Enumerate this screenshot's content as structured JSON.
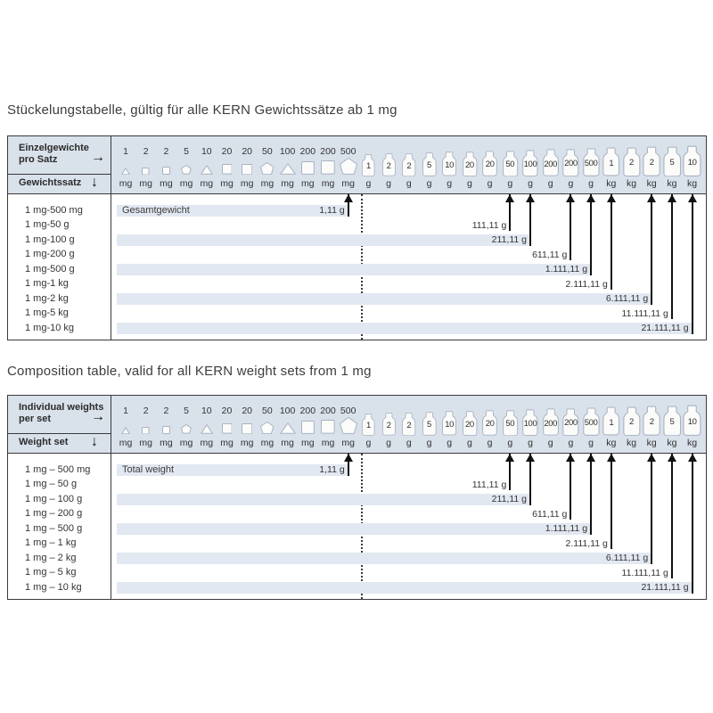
{
  "document": {
    "tables": [
      {
        "id": "de",
        "title": "Stückelungstabelle, gültig für alle KERN Gewichtssätze ab 1 mg",
        "header": {
          "col_axis_line1": "Einzelgewichte",
          "col_axis_line2": "pro Satz",
          "col_axis_arrow": "→",
          "row_axis_label": "Gewichtssatz",
          "row_axis_arrow": "↓"
        },
        "total_weight_label": "Gesamtgewicht",
        "rows": [
          {
            "set": "1 mg-500 mg",
            "total": "1,11 g",
            "arrow_col": 11
          },
          {
            "set": "1 mg-50 g",
            "total": "111,11 g",
            "arrow_col": 19
          },
          {
            "set": "1 mg-100 g",
            "total": "211,11 g",
            "arrow_col": 20
          },
          {
            "set": "1 mg-200 g",
            "total": "611,11 g",
            "arrow_col": 22
          },
          {
            "set": "1 mg-500 g",
            "total": "1.111,11 g",
            "arrow_col": 23
          },
          {
            "set": "1 mg-1 kg",
            "total": "2.111,11 g",
            "arrow_col": 24
          },
          {
            "set": "1 mg-2 kg",
            "total": "6.111,11 g",
            "arrow_col": 26
          },
          {
            "set": "1 mg-5 kg",
            "total": "11.111,11 g",
            "arrow_col": 27
          },
          {
            "set": "1 mg-10 kg",
            "total": "21.111,11 g",
            "arrow_col": 28
          }
        ]
      },
      {
        "id": "en",
        "title": "Composition table, valid for all KERN weight sets from 1 mg",
        "header": {
          "col_axis_line1": "Individual weights",
          "col_axis_line2": "per set",
          "col_axis_arrow": "→",
          "row_axis_label": "Weight set",
          "row_axis_arrow": "↓"
        },
        "total_weight_label": "Total weight",
        "rows": [
          {
            "set": "1 mg – 500 mg",
            "total": "1,11 g",
            "arrow_col": 11
          },
          {
            "set": "1 mg – 50 g",
            "total": "111,11 g",
            "arrow_col": 19
          },
          {
            "set": "1 mg – 100 g",
            "total": "211,11 g",
            "arrow_col": 20
          },
          {
            "set": "1 mg – 200 g",
            "total": "611,11 g",
            "arrow_col": 22
          },
          {
            "set": "1 mg – 500 g",
            "total": "1.111,11 g",
            "arrow_col": 23
          },
          {
            "set": "1 mg – 1 kg",
            "total": "2.111,11 g",
            "arrow_col": 24
          },
          {
            "set": "1 mg – 2 kg",
            "total": "6.111,11 g",
            "arrow_col": 26
          },
          {
            "set": "1 mg – 5 kg",
            "total": "11.111,11 g",
            "arrow_col": 27
          },
          {
            "set": "1 mg – 10 kg",
            "total": "21.111,11 g",
            "arrow_col": 28
          }
        ]
      }
    ],
    "columns": [
      {
        "value": "1",
        "unit": "mg",
        "shape": "triangle",
        "size": "xs"
      },
      {
        "value": "2",
        "unit": "mg",
        "shape": "square",
        "size": "xs"
      },
      {
        "value": "2",
        "unit": "mg",
        "shape": "square",
        "size": "xs"
      },
      {
        "value": "5",
        "unit": "mg",
        "shape": "pentagon",
        "size": "xs"
      },
      {
        "value": "10",
        "unit": "mg",
        "shape": "triangle",
        "size": "sm"
      },
      {
        "value": "20",
        "unit": "mg",
        "shape": "square",
        "size": "sm"
      },
      {
        "value": "20",
        "unit": "mg",
        "shape": "square",
        "size": "sm"
      },
      {
        "value": "50",
        "unit": "mg",
        "shape": "pentagon",
        "size": "sm"
      },
      {
        "value": "100",
        "unit": "mg",
        "shape": "triangle",
        "size": "md"
      },
      {
        "value": "200",
        "unit": "mg",
        "shape": "square",
        "size": "md"
      },
      {
        "value": "200",
        "unit": "mg",
        "shape": "square",
        "size": "md"
      },
      {
        "value": "500",
        "unit": "mg",
        "shape": "pentagon",
        "size": "md"
      },
      {
        "value": "1",
        "unit": "g",
        "shape": "bottle"
      },
      {
        "value": "2",
        "unit": "g",
        "shape": "bottle"
      },
      {
        "value": "2",
        "unit": "g",
        "shape": "bottle"
      },
      {
        "value": "5",
        "unit": "g",
        "shape": "bottle"
      },
      {
        "value": "10",
        "unit": "g",
        "shape": "bottle"
      },
      {
        "value": "20",
        "unit": "g",
        "shape": "bottle"
      },
      {
        "value": "20",
        "unit": "g",
        "shape": "bottle"
      },
      {
        "value": "50",
        "unit": "g",
        "shape": "bottle"
      },
      {
        "value": "100",
        "unit": "g",
        "shape": "bottle"
      },
      {
        "value": "200",
        "unit": "g",
        "shape": "bottle"
      },
      {
        "value": "200",
        "unit": "g",
        "shape": "bottle"
      },
      {
        "value": "500",
        "unit": "g",
        "shape": "bottle"
      },
      {
        "value": "1",
        "unit": "kg",
        "shape": "bottle"
      },
      {
        "value": "2",
        "unit": "kg",
        "shape": "bottle"
      },
      {
        "value": "2",
        "unit": "kg",
        "shape": "bottle"
      },
      {
        "value": "5",
        "unit": "kg",
        "shape": "bottle"
      },
      {
        "value": "10",
        "unit": "kg",
        "shape": "bottle"
      }
    ],
    "colors": {
      "header_band": "#d9e1eb",
      "row_stripe": "#e2e8f1",
      "border": "#3a3a3a",
      "icon_outline": "#a9b3c1",
      "icon_fill": "#fbfbfa",
      "arrow": "#111111",
      "text": "#333333"
    }
  }
}
